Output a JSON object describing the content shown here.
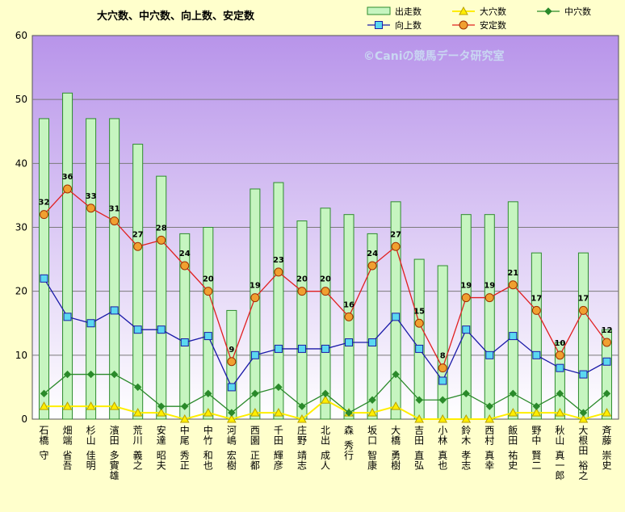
{
  "chart_data": {
    "type": "bar",
    "title": "大穴数、中穴数、向上数、安定数",
    "watermark": "©Caniの競馬データ研究室",
    "xlabel": "",
    "ylabel": "",
    "ylim": [
      0,
      60
    ],
    "yticks": [
      0,
      10,
      20,
      30,
      40,
      50,
      60
    ],
    "grid": true,
    "legend_position": "top-right",
    "colors": {
      "page_background": "#ffffcc",
      "plot_gradient_top": "#b894ea",
      "plot_gradient_bottom": "#ffffff",
      "bar_fill": "#c6f5c0",
      "bar_edge": "#2e8b2e",
      "daiana": "#ffee00",
      "chuana": "#2a8a2a",
      "koujou": "#1a1aa8",
      "antei": "#e02020",
      "antei_marker": "#f0a030",
      "koujou_marker": "#5ad8f0"
    },
    "categories": [
      "石橋 守",
      "畑端 省吾",
      "杉山 佳明",
      "濱田 多實雄",
      "荒川 義之",
      "安達 昭夫",
      "中尾 秀正",
      "中竹 和也",
      "河嶋 宏樹",
      "西園 正都",
      "千田 輝彦",
      "庄野 靖志",
      "北出 成人",
      "森 秀行",
      "坂口 智康",
      "大橋 勇樹",
      "吉田 直弘",
      "小林 真也",
      "鈴木 孝志",
      "西村 真幸",
      "飯田 祐史",
      "野中 賢二",
      "秋山 真一郎",
      "大根田 裕之",
      "斉藤 崇史"
    ],
    "series": [
      {
        "name": "出走数",
        "kind": "bar",
        "values": [
          47,
          51,
          47,
          47,
          43,
          38,
          29,
          30,
          17,
          36,
          37,
          31,
          33,
          32,
          29,
          34,
          25,
          24,
          32,
          32,
          34,
          26,
          12,
          26,
          14
        ]
      },
      {
        "name": "大穴数",
        "kind": "line",
        "marker": "triangle",
        "values": [
          2,
          2,
          2,
          2,
          1,
          1,
          0,
          1,
          0,
          1,
          1,
          0,
          3,
          1,
          1,
          2,
          0,
          0,
          0,
          0,
          1,
          1,
          1,
          0,
          1
        ]
      },
      {
        "name": "中穴数",
        "kind": "line",
        "marker": "diamond",
        "values": [
          4,
          7,
          7,
          7,
          5,
          2,
          2,
          4,
          1,
          4,
          5,
          2,
          4,
          1,
          3,
          7,
          3,
          3,
          4,
          2,
          4,
          2,
          4,
          1,
          4
        ]
      },
      {
        "name": "向上数",
        "kind": "line",
        "marker": "square",
        "values": [
          22,
          16,
          15,
          17,
          14,
          14,
          12,
          13,
          5,
          10,
          11,
          11,
          11,
          12,
          12,
          16,
          11,
          6,
          14,
          10,
          13,
          10,
          8,
          7,
          9
        ]
      },
      {
        "name": "安定数",
        "kind": "line",
        "marker": "circle",
        "labeled": true,
        "values": [
          32,
          36,
          33,
          31,
          27,
          28,
          24,
          20,
          9,
          19,
          23,
          20,
          20,
          16,
          24,
          27,
          15,
          8,
          19,
          19,
          21,
          17,
          10,
          17,
          12
        ]
      }
    ]
  }
}
